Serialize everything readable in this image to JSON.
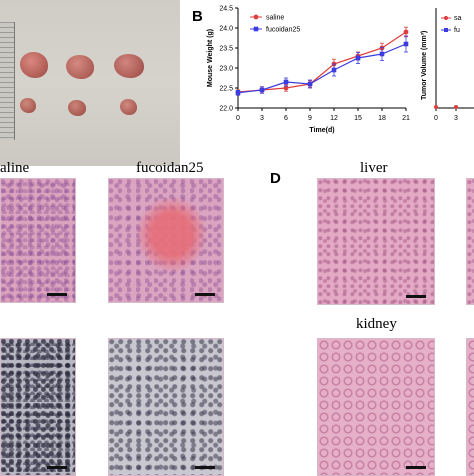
{
  "figure": {
    "panel_b_letter": "B",
    "panel_d_letter": "D",
    "histology_labels": {
      "saline": "aline",
      "fucoidan": "fucoidan25",
      "liver": "liver",
      "kidney": "kidney"
    }
  },
  "chart_data": [
    {
      "type": "line",
      "xlabel": "Time(d)",
      "ylabel": "Mouse Weight (g)",
      "x": [
        0,
        3,
        6,
        9,
        12,
        15,
        18,
        21
      ],
      "xlim": [
        0,
        21
      ],
      "ylim": [
        22.0,
        24.5
      ],
      "yticks": [
        22.0,
        22.5,
        23.0,
        23.5,
        24.0,
        24.5
      ],
      "series": [
        {
          "name": "saline",
          "color": "#e03c3c",
          "marker": "circle",
          "values": [
            22.4,
            22.45,
            22.5,
            22.6,
            23.1,
            23.3,
            23.5,
            23.9
          ],
          "errors": [
            0.05,
            0.08,
            0.08,
            0.08,
            0.12,
            0.1,
            0.12,
            0.12
          ]
        },
        {
          "name": "fucoidan25",
          "color": "#3c3ce0",
          "marker": "square",
          "values": [
            22.38,
            22.45,
            22.65,
            22.6,
            22.95,
            23.25,
            23.35,
            23.6
          ],
          "errors": [
            0.06,
            0.08,
            0.1,
            0.1,
            0.15,
            0.14,
            0.16,
            0.2
          ]
        }
      ]
    },
    {
      "type": "line",
      "ylabel": "Tumor Volume (mm³)",
      "x_ticks": [
        "0",
        "3"
      ],
      "series_labels": [
        "sa",
        "fu"
      ]
    }
  ]
}
